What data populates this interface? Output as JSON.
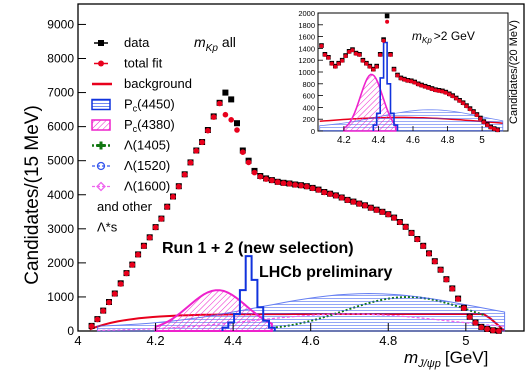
{
  "chart_data": [
    {
      "type": "scatter",
      "panel": "main",
      "ylabel": "Candidates/(15 MeV)",
      "xlabel_main": "m",
      "xlabel_sub": "J/ψp",
      "xlabel_unit": "[GeV]",
      "xlim": [
        4.0,
        5.15
      ],
      "ylim": [
        0,
        9600
      ],
      "xticks": [
        4,
        4.2,
        4.4,
        4.6,
        4.8,
        5
      ],
      "yticks": [
        0,
        1000,
        2000,
        3000,
        4000,
        5000,
        6000,
        7000,
        8000,
        9000
      ],
      "xtick_labels": [
        "4",
        "4.2",
        "4.4",
        "4.6",
        "4.8",
        "5"
      ],
      "ytick_labels": [
        "0",
        "1000",
        "2000",
        "3000",
        "4000",
        "5000",
        "6000",
        "7000",
        "8000",
        "9000"
      ],
      "mass_label_main": "m",
      "mass_label_sub": "Kp",
      "mass_label_tail": "all",
      "annotation_line1": "Run 1 + 2 (new selection)",
      "annotation_line2": "LHCb preliminary",
      "legend": {
        "placement": "top-left",
        "entries": [
          "data",
          "total fit",
          "background",
          "P",
          "P",
          "Λ(1405)",
          "Λ(1520)",
          "Λ(1600)"
        ],
        "pc1_sub": "c",
        "pc1_tail": "(4450)",
        "pc2_sub": "c",
        "pc2_tail": "(4380)",
        "other_line1": "and other",
        "other_line2": "Λ*s"
      },
      "series": [
        {
          "name": "data",
          "style": "black-squares",
          "x": [
            4.035,
            4.05,
            4.065,
            4.08,
            4.095,
            4.11,
            4.125,
            4.14,
            4.155,
            4.17,
            4.185,
            4.2,
            4.215,
            4.23,
            4.245,
            4.26,
            4.275,
            4.29,
            4.305,
            4.32,
            4.335,
            4.35,
            4.365,
            4.38,
            4.395,
            4.41,
            4.425,
            4.44,
            4.455,
            4.47,
            4.485,
            4.5,
            4.515,
            4.53,
            4.545,
            4.56,
            4.575,
            4.59,
            4.605,
            4.62,
            4.635,
            4.65,
            4.665,
            4.68,
            4.695,
            4.71,
            4.725,
            4.74,
            4.755,
            4.77,
            4.785,
            4.8,
            4.815,
            4.83,
            4.845,
            4.86,
            4.875,
            4.89,
            4.905,
            4.92,
            4.935,
            4.95,
            4.965,
            4.98,
            4.995,
            5.01,
            5.025,
            5.04,
            5.055,
            5.07,
            5.085
          ],
          "values": [
            150,
            350,
            600,
            850,
            1100,
            1400,
            1700,
            1950,
            2250,
            2500,
            2750,
            3050,
            3300,
            3650,
            3950,
            4250,
            4600,
            4950,
            5300,
            5550,
            5900,
            6300,
            6700,
            7000,
            6800,
            6100,
            5300,
            5000,
            4700,
            4550,
            4480,
            4430,
            4380,
            4350,
            4330,
            4300,
            4280,
            4250,
            4200,
            4150,
            4080,
            4030,
            3980,
            3920,
            3850,
            3800,
            3740,
            3690,
            3620,
            3560,
            3500,
            3430,
            3330,
            3200,
            3060,
            2880,
            2700,
            2500,
            2280,
            2050,
            1800,
            1520,
            1250,
            950,
            680,
            420,
            250,
            120,
            60,
            20,
            5
          ]
        },
        {
          "name": "total fit",
          "style": "red-circles",
          "x": [
            4.035,
            4.05,
            4.065,
            4.08,
            4.095,
            4.11,
            4.125,
            4.14,
            4.155,
            4.17,
            4.185,
            4.2,
            4.215,
            4.23,
            4.245,
            4.26,
            4.275,
            4.29,
            4.305,
            4.32,
            4.335,
            4.35,
            4.365,
            4.38,
            4.395,
            4.41,
            4.425,
            4.44,
            4.455,
            4.47,
            4.485,
            4.5,
            4.515,
            4.53,
            4.545,
            4.56,
            4.575,
            4.59,
            4.605,
            4.62,
            4.635,
            4.65,
            4.665,
            4.68,
            4.695,
            4.71,
            4.725,
            4.74,
            4.755,
            4.77,
            4.785,
            4.8,
            4.815,
            4.83,
            4.845,
            4.86,
            4.875,
            4.89,
            4.905,
            4.92,
            4.935,
            4.95,
            4.965,
            4.98,
            4.995,
            5.01,
            5.025,
            5.04,
            5.055,
            5.07,
            5.085
          ],
          "values": [
            140,
            340,
            590,
            840,
            1090,
            1380,
            1690,
            1940,
            2240,
            2490,
            2740,
            3040,
            3290,
            3640,
            3940,
            4240,
            4590,
            4940,
            5290,
            5540,
            5880,
            6280,
            6680,
            6350,
            6200,
            5900,
            5250,
            4950,
            4650,
            4530,
            4460,
            4420,
            4370,
            4340,
            4320,
            4290,
            4270,
            4240,
            4190,
            4140,
            4070,
            4020,
            3970,
            3910,
            3840,
            3790,
            3730,
            3680,
            3610,
            3550,
            3490,
            3420,
            3320,
            3190,
            3050,
            2870,
            2690,
            2490,
            2270,
            2040,
            1790,
            1510,
            1240,
            940,
            670,
            410,
            240,
            110,
            55,
            18,
            4
          ]
        },
        {
          "name": "Pc(4450)",
          "style": "blue-outline",
          "x": [
            4.38,
            4.395,
            4.41,
            4.425,
            4.44,
            4.455,
            4.47,
            4.485,
            4.5
          ],
          "values": [
            100,
            250,
            500,
            1200,
            2200,
            1500,
            700,
            300,
            100
          ]
        },
        {
          "name": "Pc(4380)",
          "style": "magenta-filled",
          "x": [
            4.2,
            4.25,
            4.3,
            4.35,
            4.4,
            4.45,
            4.5
          ],
          "values": [
            300,
            600,
            1000,
            1200,
            1000,
            600,
            200
          ]
        }
      ]
    },
    {
      "type": "scatter",
      "panel": "inset",
      "ylabel": "Candidates/(20 MeV)",
      "xlim": [
        4.05,
        5.15
      ],
      "ylim": [
        0,
        2000
      ],
      "xticks": [
        4.2,
        4.4,
        4.6,
        4.8,
        5
      ],
      "yticks": [
        0,
        200,
        400,
        600,
        800,
        1000,
        1200,
        1400,
        1600,
        1800,
        2000
      ],
      "xtick_labels": [
        "4.2",
        "4.4",
        "4.6",
        "4.8",
        "5"
      ],
      "ytick_labels": [
        "0",
        "200",
        "400",
        "600",
        "800",
        "1000",
        "1200",
        "1400",
        "1600",
        "1800",
        "2000"
      ],
      "mass_label_main": "m",
      "mass_label_sub": "Kp",
      "mass_label_tail": ">2 GeV",
      "series": [
        {
          "name": "data",
          "style": "black-squares",
          "x": [
            4.07,
            4.09,
            4.11,
            4.13,
            4.15,
            4.17,
            4.19,
            4.21,
            4.23,
            4.25,
            4.27,
            4.29,
            4.31,
            4.33,
            4.35,
            4.37,
            4.39,
            4.41,
            4.43,
            4.45,
            4.47,
            4.49,
            4.51,
            4.53,
            4.55,
            4.57,
            4.59,
            4.61,
            4.63,
            4.65,
            4.67,
            4.69,
            4.71,
            4.73,
            4.75,
            4.77,
            4.79,
            4.81,
            4.83,
            4.85,
            4.87,
            4.89,
            4.91,
            4.93,
            4.95,
            4.97,
            4.99,
            5.01,
            5.03,
            5.05,
            5.07,
            5.09
          ],
          "values": [
            1450,
            1300,
            1250,
            1150,
            1100,
            1150,
            1200,
            1280,
            1350,
            1380,
            1320,
            1300,
            1200,
            1150,
            1100,
            1050,
            1100,
            1300,
            1550,
            1950,
            1300,
            1050,
            950,
            900,
            880,
            860,
            850,
            830,
            800,
            780,
            760,
            740,
            720,
            700,
            690,
            680,
            660,
            630,
            600,
            560,
            520,
            480,
            430,
            380,
            330,
            280,
            220,
            160,
            110,
            70,
            40,
            20
          ]
        },
        {
          "name": "total fit",
          "style": "red-circles",
          "x": [
            4.07,
            4.09,
            4.11,
            4.13,
            4.15,
            4.17,
            4.19,
            4.21,
            4.23,
            4.25,
            4.27,
            4.29,
            4.31,
            4.33,
            4.35,
            4.37,
            4.39,
            4.41,
            4.43,
            4.45,
            4.47,
            4.49,
            4.51,
            4.53,
            4.55,
            4.57,
            4.59,
            4.61,
            4.63,
            4.65,
            4.67,
            4.69,
            4.71,
            4.73,
            4.75,
            4.77,
            4.79,
            4.81,
            4.83,
            4.85,
            4.87,
            4.89,
            4.91,
            4.93,
            4.95,
            4.97,
            4.99,
            5.01,
            5.03,
            5.05,
            5.07,
            5.09
          ],
          "values": [
            1440,
            1290,
            1240,
            1140,
            1090,
            1140,
            1190,
            1270,
            1340,
            1370,
            1310,
            1290,
            1190,
            1140,
            1090,
            1040,
            1090,
            1290,
            1530,
            1850,
            1290,
            1040,
            940,
            890,
            870,
            850,
            840,
            820,
            790,
            770,
            750,
            730,
            710,
            690,
            680,
            670,
            650,
            620,
            590,
            550,
            510,
            470,
            420,
            370,
            320,
            270,
            210,
            150,
            100,
            60,
            35,
            15
          ]
        },
        {
          "name": "Pc(4450)",
          "style": "blue-outline",
          "x": [
            4.38,
            4.4,
            4.42,
            4.44,
            4.46,
            4.48,
            4.5
          ],
          "values": [
            100,
            300,
            900,
            1500,
            800,
            300,
            100
          ]
        },
        {
          "name": "Pc(4380)",
          "style": "magenta-filled",
          "x": [
            4.2,
            4.25,
            4.3,
            4.35,
            4.4,
            4.45,
            4.5
          ],
          "values": [
            100,
            300,
            700,
            950,
            800,
            400,
            100
          ]
        }
      ]
    }
  ],
  "colors": {
    "data": "#000000",
    "total_fit": "#e8001c",
    "background": "#e8001c",
    "pc4450": "#1133dd",
    "pc4380": "#ee22cc",
    "lambda1405": "#117711",
    "lambda1520": "#3355ee",
    "lambda1600": "#ee66ee"
  }
}
